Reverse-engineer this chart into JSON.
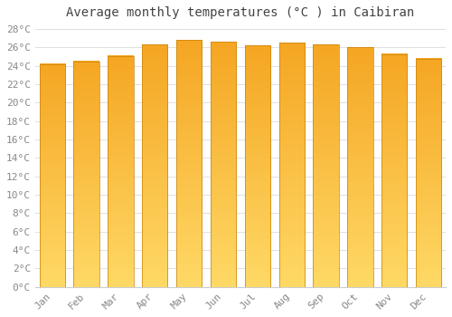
{
  "title": "Average monthly temperatures (°C ) in Caibiran",
  "months": [
    "Jan",
    "Feb",
    "Mar",
    "Apr",
    "May",
    "Jun",
    "Jul",
    "Aug",
    "Sep",
    "Oct",
    "Nov",
    "Dec"
  ],
  "values": [
    24.2,
    24.5,
    25.1,
    26.3,
    26.8,
    26.6,
    26.2,
    26.5,
    26.3,
    26.0,
    25.3,
    24.8
  ],
  "bar_color_top": "#F5A623",
  "bar_color_bottom": "#FFD966",
  "bar_edge_color": "#C8830A",
  "ylim": [
    0,
    28
  ],
  "ytick_step": 2,
  "background_color": "#ffffff",
  "grid_color": "#e0e0e0",
  "title_fontsize": 10,
  "tick_fontsize": 8,
  "tick_label_color": "#888888",
  "title_color": "#444444",
  "bar_width": 0.75
}
